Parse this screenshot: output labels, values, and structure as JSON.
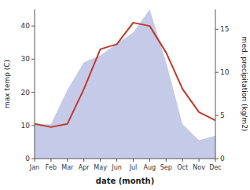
{
  "chart_data": {
    "type": "line",
    "x_label": "date (month)",
    "y_label": "max temp (C)",
    "y2_label": "med. precipitation (kg/m2)",
    "categories": [
      "Jan",
      "Feb",
      "Mar",
      "Apr",
      "May",
      "Jun",
      "Jul",
      "Aug",
      "Sep",
      "Oct",
      "Nov",
      "Dec"
    ],
    "series": [
      {
        "type": "area",
        "axis": "y2",
        "color": "#c5cae9",
        "values": [
          3.992307692307692,
          3.992307692307692,
          7.984615384615385,
          11.178461538461539,
          11.976923076923077,
          13.307692307692308,
          14.638461538461538,
          17.3,
          11.178461538461539,
          3.992307692307692,
          2.129230769230769,
          2.6615384615384614
        ]
      },
      {
        "type": "line",
        "color": "#c0392b",
        "values": [
          10.5,
          9.5,
          10.5,
          21.0,
          33.0,
          34.5,
          41.0,
          40.0,
          32.0,
          21.0,
          14.0,
          11.5
        ]
      }
    ],
    "ylim": [
      0,
      45
    ],
    "yticks": [
      0,
      10,
      20,
      30,
      40
    ],
    "y2lim": [
      0,
      17.3
    ],
    "y2ticks": [
      0,
      5,
      10,
      15
    ],
    "grid": false
  }
}
